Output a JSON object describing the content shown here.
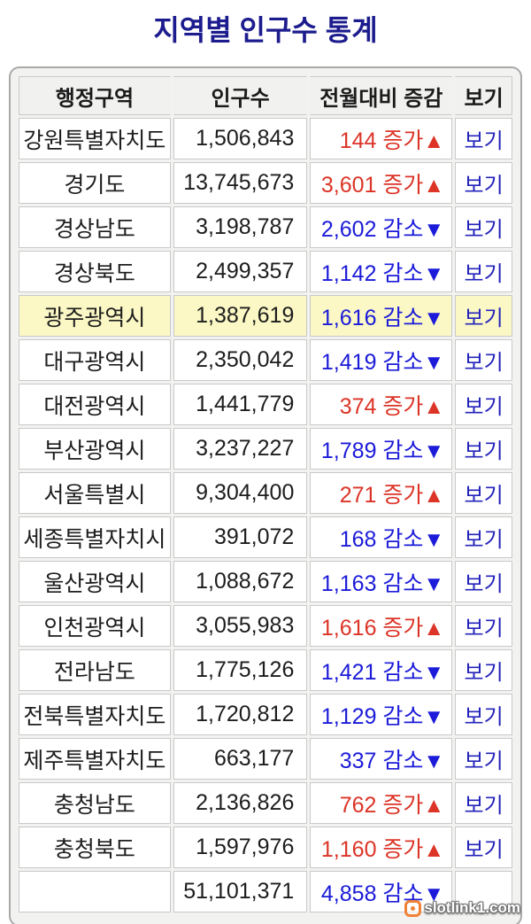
{
  "title": "지역별 인구수 통계",
  "colors": {
    "title": "#1c1c8e",
    "increase": "#dc3427",
    "decrease": "#1b1bd9",
    "link": "#2424bb",
    "highlight": "#fbf8c5"
  },
  "watermark": {
    "text": "slotlink1.com",
    "icon": "camera-badge-icon"
  },
  "table": {
    "headers": [
      "행정구역",
      "인구수",
      "전월대비 증감",
      "보기"
    ],
    "labels": {
      "increase": "증가",
      "decrease": "감소",
      "view": "보기",
      "up_arrow": "▲",
      "down_arrow": "▼"
    },
    "rows": [
      {
        "region": "강원특별자치도",
        "population": "1,506,843",
        "change": "144",
        "direction": "increase",
        "highlighted": false
      },
      {
        "region": "경기도",
        "population": "13,745,673",
        "change": "3,601",
        "direction": "increase",
        "highlighted": false
      },
      {
        "region": "경상남도",
        "population": "3,198,787",
        "change": "2,602",
        "direction": "decrease",
        "highlighted": false
      },
      {
        "region": "경상북도",
        "population": "2,499,357",
        "change": "1,142",
        "direction": "decrease",
        "highlighted": false
      },
      {
        "region": "광주광역시",
        "population": "1,387,619",
        "change": "1,616",
        "direction": "decrease",
        "highlighted": true
      },
      {
        "region": "대구광역시",
        "population": "2,350,042",
        "change": "1,419",
        "direction": "decrease",
        "highlighted": false
      },
      {
        "region": "대전광역시",
        "population": "1,441,779",
        "change": "374",
        "direction": "increase",
        "highlighted": false
      },
      {
        "region": "부산광역시",
        "population": "3,237,227",
        "change": "1,789",
        "direction": "decrease",
        "highlighted": false
      },
      {
        "region": "서울특별시",
        "population": "9,304,400",
        "change": "271",
        "direction": "increase",
        "highlighted": false
      },
      {
        "region": "세종특별자치시",
        "population": "391,072",
        "change": "168",
        "direction": "decrease",
        "highlighted": false
      },
      {
        "region": "울산광역시",
        "population": "1,088,672",
        "change": "1,163",
        "direction": "decrease",
        "highlighted": false
      },
      {
        "region": "인천광역시",
        "population": "3,055,983",
        "change": "1,616",
        "direction": "increase",
        "highlighted": false
      },
      {
        "region": "전라남도",
        "population": "1,775,126",
        "change": "1,421",
        "direction": "decrease",
        "highlighted": false
      },
      {
        "region": "전북특별자치도",
        "population": "1,720,812",
        "change": "1,129",
        "direction": "decrease",
        "highlighted": false
      },
      {
        "region": "제주특별자치도",
        "population": "663,177",
        "change": "337",
        "direction": "decrease",
        "highlighted": false
      },
      {
        "region": "충청남도",
        "population": "2,136,826",
        "change": "762",
        "direction": "increase",
        "highlighted": false
      },
      {
        "region": "충청북도",
        "population": "1,597,976",
        "change": "1,160",
        "direction": "increase",
        "highlighted": false
      }
    ],
    "total": {
      "region": "",
      "population": "51,101,371",
      "change": "4,858",
      "direction": "decrease"
    }
  }
}
